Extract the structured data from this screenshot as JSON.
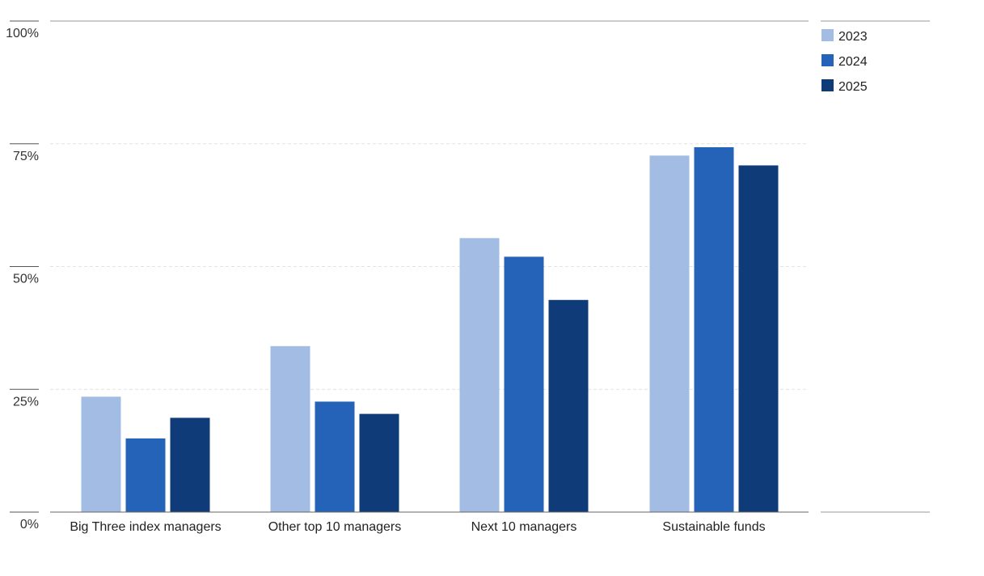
{
  "chart_data": {
    "type": "bar",
    "categories": [
      "Big Three index managers",
      "Other top 10 managers",
      "Next 10 managers",
      "Sustainable funds"
    ],
    "series": [
      {
        "name": "2023",
        "color": "#a2bce4",
        "values": [
          23.5,
          33.8,
          55.8,
          72.6
        ]
      },
      {
        "name": "2024",
        "color": "#2563b8",
        "values": [
          15.0,
          22.5,
          52.0,
          74.3
        ]
      },
      {
        "name": "2025",
        "color": "#0f3b79",
        "values": [
          19.2,
          20.0,
          43.2,
          70.6
        ]
      }
    ],
    "ylim": [
      0,
      100
    ],
    "yticks": [
      0,
      25,
      50,
      75,
      100
    ],
    "ytick_labels": [
      "0%",
      "25%",
      "50%",
      "75%",
      "100%"
    ],
    "grid": true,
    "legend_position": "top-right",
    "title": "",
    "xlabel": "",
    "ylabel": ""
  }
}
